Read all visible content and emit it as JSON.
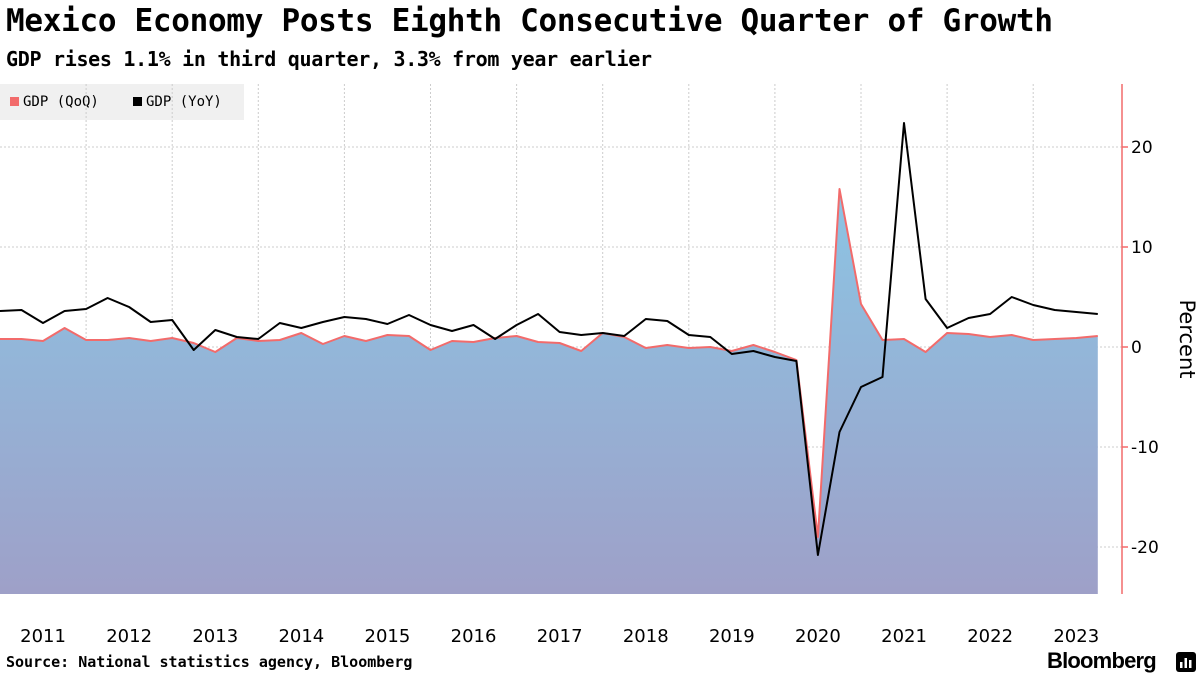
{
  "title": "Mexico Economy Posts Eighth Consecutive Quarter of Growth",
  "subtitle": "GDP rises 1.1% in third quarter, 3.3% from year earlier",
  "legend": [
    {
      "label": "GDP (QoQ)",
      "color": "#f26b6b"
    },
    {
      "label": "GDP (YoY)",
      "color": "#000000"
    }
  ],
  "source": "Source: National statistics agency, Bloomberg",
  "brand": "Bloomberg",
  "colors": {
    "area_top": "#87ceeb",
    "area_bottom": "#9ea0c8",
    "qoq_line": "#f26b6b",
    "yoy_line": "#000000",
    "axis_line": "#f26b6b",
    "grid": "#cccccc"
  },
  "chart_data": {
    "type": "area",
    "title": "Mexico Economy Posts Eighth Consecutive Quarter of Growth",
    "ylabel": "Percent",
    "xlabel": "",
    "ylim": [
      -25,
      27
    ],
    "yticks": [
      -20,
      -10,
      0,
      10,
      20
    ],
    "year_ticks": [
      "2011",
      "2012",
      "2013",
      "2014",
      "2015",
      "2016",
      "2017",
      "2018",
      "2019",
      "2020",
      "2021",
      "2022",
      "2023"
    ],
    "x_start": 2011.0,
    "x_step": 0.25,
    "series": [
      {
        "name": "GDP (QoQ)",
        "style": "area",
        "values": [
          0.8,
          0.8,
          0.6,
          1.9,
          0.7,
          0.7,
          0.9,
          0.6,
          0.9,
          0.4,
          -0.5,
          0.9,
          0.6,
          0.7,
          1.4,
          0.3,
          1.1,
          0.6,
          1.2,
          1.1,
          -0.3,
          0.6,
          0.5,
          0.9,
          1.1,
          0.5,
          0.4,
          -0.4,
          1.4,
          1.0,
          -0.1,
          0.2,
          -0.1,
          0.0,
          -0.4,
          0.2,
          -0.5,
          -1.3,
          -19.0,
          15.8,
          4.3,
          0.7,
          0.8,
          -0.5,
          1.4,
          1.3,
          1.0,
          1.2,
          0.7,
          0.8,
          0.9,
          1.1
        ]
      },
      {
        "name": "GDP (YoY)",
        "style": "line",
        "values": [
          3.6,
          3.7,
          2.4,
          3.6,
          3.8,
          4.9,
          4.0,
          2.5,
          2.7,
          -0.3,
          1.7,
          1.0,
          0.8,
          2.4,
          1.9,
          2.5,
          3.0,
          2.8,
          2.3,
          3.2,
          2.2,
          1.6,
          2.2,
          0.8,
          2.2,
          3.3,
          1.5,
          1.2,
          1.4,
          1.1,
          2.8,
          2.6,
          1.2,
          1.0,
          -0.7,
          -0.4,
          -1.0,
          -1.4,
          -20.8,
          -8.5,
          -4.0,
          -3.0,
          22.4,
          4.8,
          1.9,
          2.9,
          3.3,
          5.0,
          4.2,
          3.7,
          3.5,
          3.3
        ]
      }
    ]
  }
}
